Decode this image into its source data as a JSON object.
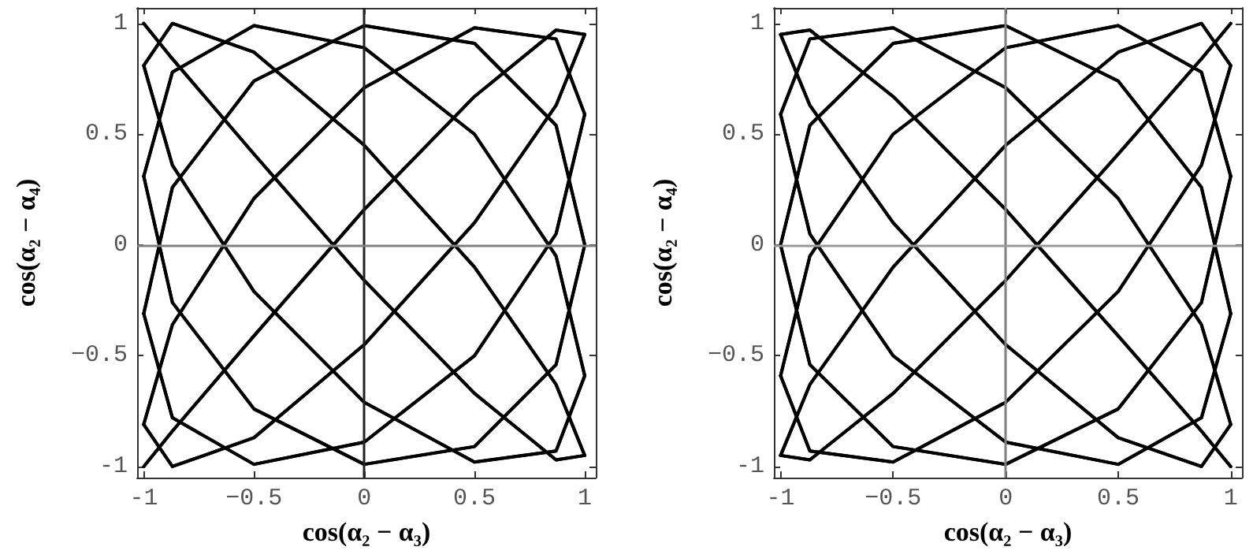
{
  "chart_data": [
    {
      "type": "line",
      "xlabel": "cos(α₂ − α₃)",
      "ylabel": "cos(α₂ − α₄)",
      "xlim": [
        -1.03,
        1.05
      ],
      "ylim": [
        -1.05,
        1.07
      ],
      "xticks": [
        -1,
        {
          "value": -0.5,
          "label": "−0.5"
        },
        0,
        0.5,
        1
      ],
      "yticks": [
        -1,
        {
          "value": -0.5,
          "label": "−0.5"
        },
        0,
        0.5,
        1
      ],
      "grid": false,
      "line_style": "solid",
      "ref_lines": [
        {
          "axis": "x",
          "value": 0,
          "color": "#222222"
        },
        {
          "axis": "y",
          "value": 0,
          "color": "#808080"
        }
      ],
      "series": [
        {
          "color": "#000000",
          "x": [
            1,
            0.87,
            0.5,
            0,
            -0.5,
            -0.87,
            -1
          ],
          "values": [
            0.95,
            0.63,
            0.1,
            -0.45,
            -0.87,
            -1,
            -0.81
          ]
        },
        {
          "color": "#000000",
          "x": [
            -1,
            -0.87,
            -0.5,
            0,
            0.5,
            0.87,
            1
          ],
          "values": [
            -0.81,
            -0.36,
            0.21,
            0.71,
            0.98,
            0.93,
            0.59
          ]
        },
        {
          "color": "#000000",
          "x": [
            1,
            0.87,
            0.5,
            0,
            -0.5,
            -0.87,
            -1
          ],
          "values": [
            0.59,
            0.05,
            -0.5,
            -0.89,
            -0.99,
            -0.78,
            -0.31
          ]
        },
        {
          "color": "#000000",
          "x": [
            -1,
            -0.87,
            -0.5,
            0,
            0.5,
            0.87,
            1
          ],
          "values": [
            -0.31,
            0.26,
            0.74,
            0.99,
            0.91,
            0.54,
            0
          ]
        },
        {
          "color": "#000000",
          "x": [
            1,
            0.87,
            0.5,
            0,
            -0.5,
            -0.87,
            -1
          ],
          "values": [
            0,
            -0.54,
            -0.91,
            -0.99,
            -0.74,
            -0.26,
            0.31
          ]
        },
        {
          "color": "#000000",
          "x": [
            -1,
            -0.87,
            -0.5,
            0,
            0.5,
            0.87,
            1
          ],
          "values": [
            0.31,
            0.78,
            0.99,
            0.89,
            0.5,
            -0.05,
            -0.59
          ]
        },
        {
          "color": "#000000",
          "x": [
            1,
            0.87,
            0.5,
            0,
            -0.5,
            -0.87,
            -1
          ],
          "values": [
            -0.59,
            -0.93,
            -0.98,
            -0.71,
            -0.21,
            0.36,
            0.81
          ]
        },
        {
          "color": "#000000",
          "x": [
            -1,
            -0.87,
            -0.5,
            0,
            0.5,
            0.87,
            1
          ],
          "values": [
            0.81,
            1,
            0.87,
            0.45,
            -0.1,
            -0.63,
            -0.95
          ]
        },
        {
          "color": "#000000",
          "x": [
            1,
            0.87,
            0.5,
            0,
            -0.5,
            -0.87,
            -1
          ],
          "values": [
            -0.95,
            -0.97,
            -0.67,
            -0.16,
            0.41,
            0.84,
            1
          ]
        },
        {
          "color": "#000000",
          "x": [
            -1,
            -0.87,
            -0.5,
            0,
            0.5,
            0.87,
            1
          ],
          "values": [
            1,
            0.84,
            0.41,
            -0.16,
            -0.67,
            -0.97,
            -0.95
          ]
        },
        {
          "color": "#000000",
          "x": [
            1,
            0.87,
            0.5,
            0,
            -0.5,
            -0.87,
            -1
          ],
          "values": [
            -0.95,
            -0.63,
            -0.1,
            0.45,
            0.87,
            1,
            0.81
          ]
        },
        {
          "color": "#000000",
          "x": [
            -1,
            -0.87,
            -0.5,
            0,
            0.5,
            0.87,
            1
          ],
          "values": [
            0.81,
            0.36,
            -0.21,
            -0.71,
            -0.98,
            -0.93,
            -0.59
          ]
        },
        {
          "color": "#000000",
          "x": [
            1,
            0.87,
            0.5,
            0,
            -0.5,
            -0.87,
            -1
          ],
          "values": [
            -0.59,
            -0.05,
            0.5,
            0.89,
            0.99,
            0.78,
            0.31
          ]
        },
        {
          "color": "#000000",
          "x": [
            -1,
            -0.87,
            -0.5,
            0,
            0.5,
            0.87,
            1
          ],
          "values": [
            0.31,
            -0.26,
            -0.74,
            -0.99,
            -0.91,
            -0.54,
            0
          ]
        },
        {
          "color": "#000000",
          "x": [
            1,
            0.87,
            0.5,
            0,
            -0.5,
            -0.87,
            -1
          ],
          "values": [
            0,
            0.54,
            0.91,
            0.99,
            0.74,
            0.26,
            -0.31
          ]
        },
        {
          "color": "#000000",
          "x": [
            -1,
            -0.87,
            -0.5,
            0,
            0.5,
            0.87,
            1
          ],
          "values": [
            -0.31,
            -0.78,
            -0.99,
            -0.89,
            -0.5,
            0.05,
            0.59
          ]
        },
        {
          "color": "#000000",
          "x": [
            1,
            0.87,
            0.5,
            0,
            -0.5,
            -0.87,
            -1
          ],
          "values": [
            0.59,
            0.93,
            0.98,
            0.71,
            0.21,
            -0.36,
            -0.81
          ]
        },
        {
          "color": "#000000",
          "x": [
            -1,
            -0.87,
            -0.5,
            0,
            0.5,
            0.87,
            1
          ],
          "values": [
            -0.81,
            -1,
            -0.87,
            -0.45,
            0.1,
            0.63,
            0.95
          ]
        },
        {
          "color": "#000000",
          "x": [
            1,
            0.87,
            0.5,
            0,
            -0.5,
            -0.87,
            -1
          ],
          "values": [
            0.95,
            0.97,
            0.67,
            0.16,
            -0.41,
            -0.84,
            -1
          ]
        },
        {
          "color": "#000000",
          "x": [
            -1,
            -0.87,
            -0.5,
            0,
            0.5,
            0.87,
            1
          ],
          "values": [
            -1,
            -0.84,
            -0.41,
            0.16,
            0.67,
            0.97,
            0.95
          ]
        }
      ]
    },
    {
      "type": "line",
      "xlabel": "cos(α₂ − α₃)",
      "ylabel": "cos(α₂ − α₄)",
      "xlim": [
        -1.03,
        1.05
      ],
      "ylim": [
        -1.05,
        1.07
      ],
      "xticks": [
        -1,
        {
          "value": -0.5,
          "label": "−0.5"
        },
        0,
        0.5,
        1
      ],
      "yticks": [
        -1,
        {
          "value": -0.5,
          "label": "−0.5"
        },
        0,
        0.5,
        1
      ],
      "grid": false,
      "line_style": "solid",
      "ref_lines": [
        {
          "axis": "x",
          "value": 0,
          "color": "#808080"
        },
        {
          "axis": "y",
          "value": 0,
          "color": "#999999"
        }
      ],
      "series": [
        {
          "color": "#000000",
          "x": [
            -1,
            -0.87,
            -0.5,
            0,
            0.5,
            0.87,
            1
          ],
          "values": [
            0.95,
            0.63,
            0.1,
            -0.45,
            -0.87,
            -1,
            -0.81
          ]
        },
        {
          "color": "#000000",
          "x": [
            1,
            0.87,
            0.5,
            0,
            -0.5,
            -0.87,
            -1
          ],
          "values": [
            -0.81,
            -0.36,
            0.21,
            0.71,
            0.98,
            0.93,
            0.59
          ]
        },
        {
          "color": "#000000",
          "x": [
            -1,
            -0.87,
            -0.5,
            0,
            0.5,
            0.87,
            1
          ],
          "values": [
            0.59,
            0.05,
            -0.5,
            -0.89,
            -0.99,
            -0.78,
            -0.31
          ]
        },
        {
          "color": "#000000",
          "x": [
            1,
            0.87,
            0.5,
            0,
            -0.5,
            -0.87,
            -1
          ],
          "values": [
            -0.31,
            0.26,
            0.74,
            0.99,
            0.91,
            0.54,
            0
          ]
        },
        {
          "color": "#000000",
          "x": [
            -1,
            -0.87,
            -0.5,
            0,
            0.5,
            0.87,
            1
          ],
          "values": [
            0,
            -0.54,
            -0.91,
            -0.99,
            -0.74,
            -0.26,
            0.31
          ]
        },
        {
          "color": "#000000",
          "x": [
            1,
            0.87,
            0.5,
            0,
            -0.5,
            -0.87,
            -1
          ],
          "values": [
            0.31,
            0.78,
            0.99,
            0.89,
            0.5,
            -0.05,
            -0.59
          ]
        },
        {
          "color": "#000000",
          "x": [
            -1,
            -0.87,
            -0.5,
            0,
            0.5,
            0.87,
            1
          ],
          "values": [
            -0.59,
            -0.93,
            -0.98,
            -0.71,
            -0.21,
            0.36,
            0.81
          ]
        },
        {
          "color": "#000000",
          "x": [
            1,
            0.87,
            0.5,
            0,
            -0.5,
            -0.87,
            -1
          ],
          "values": [
            0.81,
            1,
            0.87,
            0.45,
            -0.1,
            -0.63,
            -0.95
          ]
        },
        {
          "color": "#000000",
          "x": [
            -1,
            -0.87,
            -0.5,
            0,
            0.5,
            0.87,
            1
          ],
          "values": [
            -0.95,
            -0.97,
            -0.67,
            -0.16,
            0.41,
            0.84,
            1
          ]
        },
        {
          "color": "#000000",
          "x": [
            1,
            0.87,
            0.5,
            0,
            -0.5,
            -0.87,
            -1
          ],
          "values": [
            1,
            0.84,
            0.41,
            -0.16,
            -0.67,
            -0.97,
            -0.95
          ]
        },
        {
          "color": "#000000",
          "x": [
            -1,
            -0.87,
            -0.5,
            0,
            0.5,
            0.87,
            1
          ],
          "values": [
            -0.95,
            -0.63,
            -0.1,
            0.45,
            0.87,
            1,
            0.81
          ]
        },
        {
          "color": "#000000",
          "x": [
            1,
            0.87,
            0.5,
            0,
            -0.5,
            -0.87,
            -1
          ],
          "values": [
            0.81,
            0.36,
            -0.21,
            -0.71,
            -0.98,
            -0.93,
            -0.59
          ]
        },
        {
          "color": "#000000",
          "x": [
            -1,
            -0.87,
            -0.5,
            0,
            0.5,
            0.87,
            1
          ],
          "values": [
            -0.59,
            -0.05,
            0.5,
            0.89,
            0.99,
            0.78,
            0.31
          ]
        },
        {
          "color": "#000000",
          "x": [
            1,
            0.87,
            0.5,
            0,
            -0.5,
            -0.87,
            -1
          ],
          "values": [
            0.31,
            -0.26,
            -0.74,
            -0.99,
            -0.91,
            -0.54,
            0
          ]
        },
        {
          "color": "#000000",
          "x": [
            -1,
            -0.87,
            -0.5,
            0,
            0.5,
            0.87,
            1
          ],
          "values": [
            0,
            0.54,
            0.91,
            0.99,
            0.74,
            0.26,
            -0.31
          ]
        },
        {
          "color": "#000000",
          "x": [
            1,
            0.87,
            0.5,
            0,
            -0.5,
            -0.87,
            -1
          ],
          "values": [
            -0.31,
            -0.78,
            -0.99,
            -0.89,
            -0.5,
            0.05,
            0.59
          ]
        },
        {
          "color": "#000000",
          "x": [
            -1,
            -0.87,
            -0.5,
            0,
            0.5,
            0.87,
            1
          ],
          "values": [
            0.59,
            0.93,
            0.98,
            0.71,
            0.21,
            -0.36,
            -0.81
          ]
        },
        {
          "color": "#000000",
          "x": [
            1,
            0.87,
            0.5,
            0,
            -0.5,
            -0.87,
            -1
          ],
          "values": [
            -0.81,
            -1,
            -0.87,
            -0.45,
            0.1,
            0.63,
            0.95
          ]
        },
        {
          "color": "#000000",
          "x": [
            -1,
            -0.87,
            -0.5,
            0,
            0.5,
            0.87,
            1
          ],
          "values": [
            0.95,
            0.97,
            0.67,
            0.16,
            -0.41,
            -0.84,
            -1
          ]
        },
        {
          "color": "#000000",
          "x": [
            1,
            0.87,
            0.5,
            0,
            -0.5,
            -0.87,
            -1
          ],
          "values": [
            -1,
            -0.84,
            -0.41,
            0.16,
            0.67,
            0.97,
            0.95
          ]
        }
      ]
    }
  ]
}
